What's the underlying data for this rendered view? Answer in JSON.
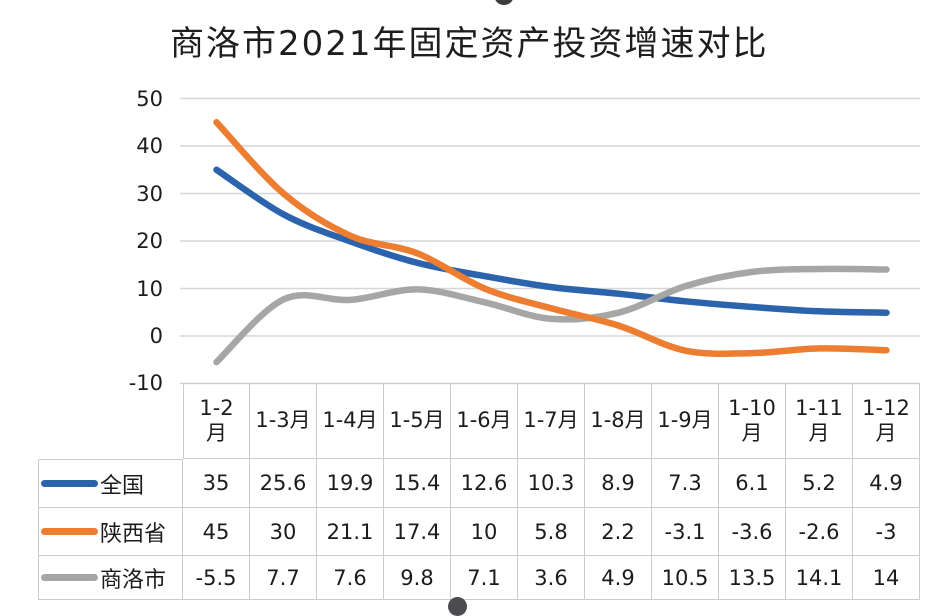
{
  "title": "商洛市2021年固定资产投资增速对比",
  "chart_data": {
    "type": "line",
    "title": "商洛市2021年固定资产投资增速对比",
    "smooth": true,
    "grid": true,
    "data_table": true,
    "legend_position": "table-left",
    "categories": [
      "1-2月",
      "1-3月",
      "1-4月",
      "1-5月",
      "1-6月",
      "1-7月",
      "1-8月",
      "1-9月",
      "1-10月",
      "1-11月",
      "1-12月"
    ],
    "series": [
      {
        "name": "全国",
        "color": "#2b63ad",
        "values": [
          35,
          25.6,
          19.9,
          15.4,
          12.6,
          10.3,
          8.9,
          7.3,
          6.1,
          5.2,
          4.9
        ]
      },
      {
        "name": "陕西省",
        "color": "#ed7d31",
        "values": [
          45,
          30,
          21.1,
          17.4,
          10,
          5.8,
          2.2,
          -3.1,
          -3.6,
          -2.6,
          -3
        ]
      },
      {
        "name": "商洛市",
        "color": "#a6a6a6",
        "values": [
          -5.5,
          7.7,
          7.6,
          9.8,
          7.1,
          3.6,
          4.9,
          10.5,
          13.5,
          14.1,
          14
        ]
      }
    ],
    "y_ticks": [
      50,
      40,
      30,
      20,
      10,
      0,
      -10
    ],
    "ylim": [
      -10,
      50
    ],
    "xlabel": "",
    "ylabel": "",
    "gridline_color": "#d3d7db",
    "draw_order_bottom_to_top": [
      "全国",
      "商洛市",
      "陕西省"
    ]
  }
}
